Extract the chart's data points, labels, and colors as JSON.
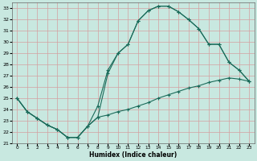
{
  "xlabel": "Humidex (Indice chaleur)",
  "xlim": [
    -0.5,
    23.5
  ],
  "ylim": [
    21,
    33.5
  ],
  "yticks": [
    21,
    22,
    23,
    24,
    25,
    26,
    27,
    28,
    29,
    30,
    31,
    32,
    33
  ],
  "xticks": [
    0,
    1,
    2,
    3,
    4,
    5,
    6,
    7,
    8,
    9,
    10,
    11,
    12,
    13,
    14,
    15,
    16,
    17,
    18,
    19,
    20,
    21,
    22,
    23
  ],
  "background_color": "#c8e8e0",
  "line_color": "#1a6b5a",
  "grid_color": "#d4a0a0",
  "line1_x": [
    0,
    1,
    2,
    3,
    4,
    5,
    6,
    7,
    8,
    9,
    10,
    11,
    12,
    13,
    14,
    15,
    16,
    17,
    18,
    19,
    20,
    21,
    22,
    23
  ],
  "line1_y": [
    25.0,
    23.8,
    23.2,
    22.6,
    22.2,
    21.5,
    21.5,
    22.5,
    24.3,
    27.5,
    29.0,
    29.8,
    31.9,
    32.8,
    33.2,
    33.2,
    32.7,
    32.0,
    31.2,
    29.8,
    29.8,
    28.2,
    27.5,
    26.5
  ],
  "line2_x": [
    0,
    1,
    2,
    3,
    4,
    5,
    6,
    7,
    8,
    9,
    10,
    11,
    12,
    13,
    14,
    15,
    16,
    17,
    18,
    19,
    20,
    21,
    22,
    23
  ],
  "line2_y": [
    25.0,
    23.8,
    23.2,
    22.6,
    22.2,
    21.5,
    21.5,
    22.5,
    23.3,
    23.5,
    23.8,
    24.0,
    24.3,
    24.6,
    25.0,
    25.3,
    25.6,
    25.9,
    26.1,
    26.4,
    26.6,
    26.8,
    26.7,
    26.5
  ],
  "line3_x": [
    0,
    1,
    2,
    3,
    4,
    5,
    6,
    7,
    8,
    9,
    10,
    11,
    12,
    13,
    14,
    15,
    16,
    17,
    18,
    19,
    20,
    21,
    22,
    23
  ],
  "line3_y": [
    25.0,
    23.8,
    23.2,
    22.6,
    22.2,
    21.5,
    21.5,
    22.5,
    23.3,
    27.2,
    29.0,
    29.8,
    31.9,
    32.8,
    33.2,
    33.2,
    32.7,
    32.0,
    31.2,
    29.8,
    29.8,
    28.2,
    27.5,
    26.5
  ]
}
